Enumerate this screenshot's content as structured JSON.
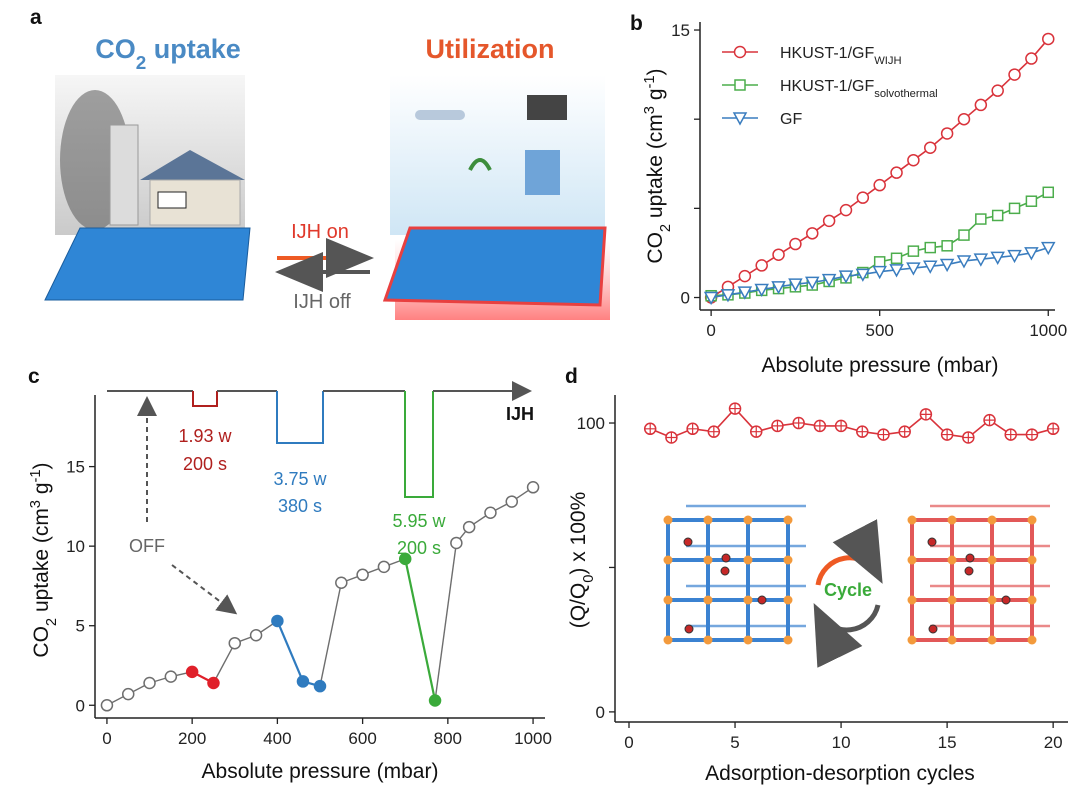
{
  "illustration": {
    "panel": "a",
    "left_title": [
      {
        "text": "CO"
      },
      {
        "text": "2",
        "shift": "sub"
      },
      {
        "text": " uptake"
      }
    ],
    "right_title": "Utilization",
    "on": "IJH on",
    "off": "IJH off"
  },
  "chart_data": [
    {
      "type": "line",
      "panel": "b",
      "xlabel": "Absolute pressure (mbar)",
      "ylabel": [
        {
          "text": "CO"
        },
        {
          "text": "2",
          "shift": "sub"
        },
        {
          "text": " uptake (cm"
        },
        {
          "text": "3",
          "shift": "super"
        },
        {
          "text": " g"
        },
        {
          "text": "-1",
          "shift": "super"
        },
        {
          "text": ")"
        }
      ],
      "xlim": [
        -33,
        1020
      ],
      "ylim": [
        -0.7,
        15.45
      ],
      "xticks": [
        0,
        500,
        1000
      ],
      "yticks": [
        0,
        15
      ],
      "yminor": [
        5,
        10
      ],
      "x": [
        0,
        50,
        100,
        150,
        200,
        250,
        300,
        350,
        400,
        450,
        500,
        550,
        600,
        650,
        700,
        750,
        800,
        850,
        900,
        950,
        1000
      ],
      "legend": "upper left",
      "series": [
        {
          "name": "HKUST-1/GF",
          "name_sub": "WIJH",
          "color": "#d9333b",
          "marker": "circle",
          "values": [
            0,
            0.6,
            1.2,
            1.8,
            2.4,
            3.0,
            3.6,
            4.3,
            4.9,
            5.6,
            6.3,
            7.0,
            7.7,
            8.4,
            9.2,
            10.0,
            10.8,
            11.6,
            12.5,
            13.4,
            14.5
          ]
        },
        {
          "name": "HKUST-1/GF",
          "name_sub": "solvothermal",
          "color": "#4cad4c",
          "marker": "square",
          "values": [
            0.1,
            0.15,
            0.25,
            0.4,
            0.5,
            0.6,
            0.7,
            0.9,
            1.1,
            1.4,
            2.0,
            2.2,
            2.6,
            2.8,
            2.9,
            3.5,
            4.4,
            4.6,
            5.0,
            5.4,
            5.9
          ]
        },
        {
          "name": "GF",
          "color": "#3a7dbf",
          "marker": "triangle_down",
          "values": [
            0,
            0.15,
            0.3,
            0.45,
            0.6,
            0.75,
            0.85,
            1.0,
            1.2,
            1.3,
            1.45,
            1.55,
            1.65,
            1.75,
            1.85,
            2.05,
            2.15,
            2.25,
            2.35,
            2.5,
            2.8
          ]
        }
      ]
    },
    {
      "type": "segments",
      "panel": "c",
      "xlabel": "Absolute pressure (mbar)",
      "ylabel": [
        {
          "text": "CO"
        },
        {
          "text": "2",
          "shift": "sub"
        },
        {
          "text": " uptake (cm"
        },
        {
          "text": "3",
          "shift": "super"
        },
        {
          "text": " g"
        },
        {
          "text": "-1",
          "shift": "super"
        },
        {
          "text": ")"
        }
      ],
      "xlim": [
        -28,
        1028
      ],
      "ylim": [
        -0.8,
        19.5
      ],
      "xticks": [
        0,
        200,
        400,
        600,
        800,
        1000
      ],
      "yticks": [
        0,
        5,
        10,
        15
      ],
      "line_color": "#6e6e6e",
      "x": [
        0,
        50,
        100,
        150,
        200,
        250,
        300,
        350,
        400,
        460,
        500,
        550,
        600,
        650,
        700,
        770,
        820,
        850,
        900,
        950,
        1000
      ],
      "values": [
        0,
        0.7,
        1.4,
        1.8,
        2.1,
        1.4,
        3.9,
        4.4,
        5.3,
        1.5,
        1.2,
        7.7,
        8.2,
        8.7,
        9.2,
        0.3,
        10.2,
        11.2,
        12.1,
        12.8,
        13.7
      ],
      "point_colors": [
        "#6e6e6e",
        "#6e6e6e",
        "#6e6e6e",
        "#6e6e6e",
        "#e0202a",
        "#e0202a",
        "#6e6e6e",
        "#6e6e6e",
        "#2f7bbf",
        "#2f7bbf",
        "#2f7bbf",
        "#6e6e6e",
        "#6e6e6e",
        "#6e6e6e",
        "#3aaa3a",
        "#3aaa3a",
        "#6e6e6e",
        "#6e6e6e",
        "#6e6e6e",
        "#6e6e6e",
        "#6e6e6e"
      ],
      "annotations": [
        {
          "text": "1.93 w",
          "color": "#b0201e"
        },
        {
          "text": "200 s",
          "color": "#b0201e"
        },
        {
          "text": "3.75 w",
          "color": "#2f7bbf"
        },
        {
          "text": "380 s",
          "color": "#2f7bbf"
        },
        {
          "text": "5.95 w",
          "color": "#3aaa3a"
        },
        {
          "text": "200 s",
          "color": "#3aaa3a"
        },
        {
          "text": "IJH",
          "color": "#111111"
        },
        {
          "text": "OFF",
          "color": "#666666"
        }
      ]
    },
    {
      "type": "line",
      "panel": "d",
      "xlabel": "Adsorption-desorption cycles",
      "ylabel": [
        {
          "text": "(Q/Q"
        },
        {
          "text": "0",
          "shift": "sub"
        },
        {
          "text": ") x 100%"
        }
      ],
      "xlim": [
        -0.66,
        20.7
      ],
      "ylim": [
        -3.5,
        109.7
      ],
      "xticks": [
        0,
        5,
        10,
        15,
        20
      ],
      "yticks": [
        0,
        100
      ],
      "yminor": [
        50
      ],
      "x": [
        1,
        2,
        3,
        4,
        5,
        6,
        7,
        8,
        9,
        10,
        11,
        12,
        13,
        14,
        15,
        16,
        17,
        18,
        19,
        20
      ],
      "series": [
        {
          "color": "#d9333b",
          "marker": "circle_plus",
          "values": [
            98,
            95,
            98,
            97,
            105,
            97,
            99,
            100,
            99,
            99,
            97,
            96,
            97,
            103,
            96,
            95,
            101,
            96,
            96,
            98
          ]
        }
      ],
      "inset_label": "Cycle"
    }
  ]
}
